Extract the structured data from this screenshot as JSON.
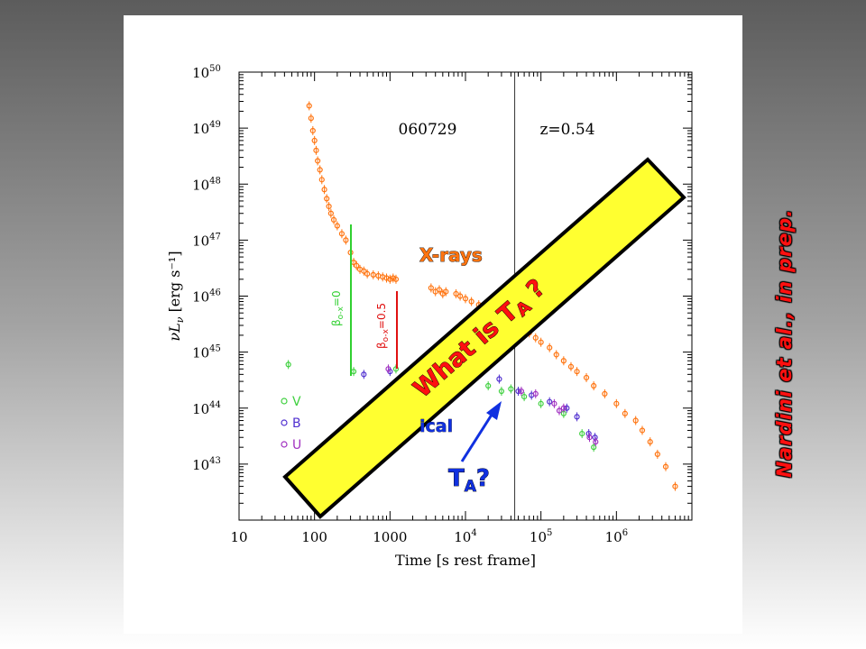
{
  "chart_data": {
    "type": "scatter",
    "xlabel": "Time [s rest frame]",
    "ylabel": "νL",
    "ylabel_sub": "ν",
    "ylabel_units": "[erg s⁻¹]",
    "xscale": "log",
    "yscale": "log",
    "xlim": [
      10,
      10000000
    ],
    "ylim": [
      1e+42,
      1e+50
    ],
    "x_ticks": [
      {
        "value": 10,
        "base": "10",
        "exp": ""
      },
      {
        "value": 100,
        "base": "100",
        "exp": ""
      },
      {
        "value": 1000,
        "base": "1000",
        "exp": ""
      },
      {
        "value": 10000,
        "base": "10",
        "exp": "4"
      },
      {
        "value": 100000,
        "base": "10",
        "exp": "5"
      },
      {
        "value": 1000000,
        "base": "10",
        "exp": "6"
      }
    ],
    "y_ticks": [
      {
        "value": 1e+43,
        "base": "10",
        "exp": "43"
      },
      {
        "value": 1e+44,
        "base": "10",
        "exp": "44"
      },
      {
        "value": 1e+45,
        "base": "10",
        "exp": "45"
      },
      {
        "value": 1e+46,
        "base": "10",
        "exp": "46"
      },
      {
        "value": 1e+47,
        "base": "10",
        "exp": "47"
      },
      {
        "value": 1e+48,
        "base": "10",
        "exp": "48"
      },
      {
        "value": 1e+49,
        "base": "10",
        "exp": "49"
      },
      {
        "value": 1e+50,
        "base": "10",
        "exp": "50"
      }
    ],
    "grb_name": "060729",
    "redshift_label": "z=0.54",
    "vertical_line_x": 45000,
    "series": [
      {
        "name": "X-rays",
        "color": "#ff7410",
        "points": [
          [
            85,
            2.5e+49
          ],
          [
            90,
            1.5e+49
          ],
          [
            95,
            9e+48
          ],
          [
            100,
            6e+48
          ],
          [
            105,
            4e+48
          ],
          [
            110,
            2.6e+48
          ],
          [
            118,
            1.8e+48
          ],
          [
            125,
            1.2e+48
          ],
          [
            135,
            8e+47
          ],
          [
            145,
            5.5e+47
          ],
          [
            155,
            4e+47
          ],
          [
            165,
            3e+47
          ],
          [
            180,
            2.3e+47
          ],
          [
            200,
            1.8e+47
          ],
          [
            230,
            1.3e+47
          ],
          [
            260,
            1e+47
          ],
          [
            300,
            6e+46
          ],
          [
            330,
            4e+46
          ],
          [
            360,
            3.5e+46
          ],
          [
            400,
            3e+46
          ],
          [
            450,
            2.8e+46
          ],
          [
            500,
            2.5e+46
          ],
          [
            600,
            2.4e+46
          ],
          [
            700,
            2.3e+46
          ],
          [
            800,
            2.2e+46
          ],
          [
            900,
            2.1e+46
          ],
          [
            1000,
            2e+46
          ],
          [
            1100,
            2.1e+46
          ],
          [
            1200,
            2e+46
          ],
          [
            3500,
            1.4e+46
          ],
          [
            4000,
            1.2e+46
          ],
          [
            4500,
            1.3e+46
          ],
          [
            5000,
            1.1e+46
          ],
          [
            5500,
            1.2e+46
          ],
          [
            7500,
            1.1e+46
          ],
          [
            8500,
            1e+46
          ],
          [
            10000,
            9e+45
          ],
          [
            12000,
            8e+45
          ],
          [
            15000,
            7e+45
          ],
          [
            18000,
            6.5e+45
          ],
          [
            22000,
            6e+45
          ],
          [
            26000,
            5e+45
          ],
          [
            30000,
            4.5e+45
          ],
          [
            36000,
            4e+45
          ],
          [
            42000,
            3.5e+45
          ],
          [
            50000,
            3e+45
          ],
          [
            60000,
            2.6e+45
          ],
          [
            70000,
            2.2e+45
          ],
          [
            85000,
            1.8e+45
          ],
          [
            100000,
            1.5e+45
          ],
          [
            130000,
            1.2e+45
          ],
          [
            160000,
            9e+44
          ],
          [
            200000,
            7e+44
          ],
          [
            250000,
            5.5e+44
          ],
          [
            300000,
            4.5e+44
          ],
          [
            400000,
            3.5e+44
          ],
          [
            500000,
            2.5e+44
          ],
          [
            700000,
            1.8e+44
          ],
          [
            1000000,
            1.2e+44
          ],
          [
            1300000,
            8e+43
          ],
          [
            1800000,
            6e+43
          ],
          [
            2200000,
            4e+43
          ],
          [
            2800000,
            2.5e+43
          ],
          [
            3500000,
            1.5e+43
          ],
          [
            4500000,
            9e+42
          ],
          [
            6000000,
            4e+42
          ]
        ]
      },
      {
        "name": "V",
        "color": "#40d040",
        "points": [
          [
            45,
            6e+44
          ],
          [
            330,
            4.5e+44
          ],
          [
            1200,
            5e+44
          ],
          [
            8000,
            2.5e+44
          ],
          [
            20000,
            2.5e+44
          ],
          [
            30000,
            2e+44
          ],
          [
            40000,
            2.2e+44
          ],
          [
            60000,
            1.6e+44
          ],
          [
            100000,
            1.2e+44
          ],
          [
            200000,
            8e+43
          ],
          [
            350000,
            3.5e+43
          ],
          [
            500000,
            2e+43
          ]
        ]
      },
      {
        "name": "B",
        "color": "#5030d0",
        "points": [
          [
            450,
            4e+44
          ],
          [
            1000,
            4.5e+44
          ],
          [
            28000,
            3.3e+44
          ],
          [
            50000,
            2e+44
          ],
          [
            75000,
            1.7e+44
          ],
          [
            130000,
            1.3e+44
          ],
          [
            220000,
            1e+44
          ],
          [
            300000,
            7e+43
          ],
          [
            430000,
            3.5e+43
          ],
          [
            520000,
            3e+43
          ]
        ]
      },
      {
        "name": "U",
        "color": "#a030c0",
        "points": [
          [
            950,
            5e+44
          ],
          [
            55000,
            2e+44
          ],
          [
            85000,
            1.8e+44
          ],
          [
            150000,
            1.2e+44
          ],
          [
            175000,
            9e+43
          ],
          [
            200000,
            1e+44
          ],
          [
            440000,
            3e+43
          ],
          [
            530000,
            2.5e+43
          ]
        ]
      }
    ],
    "legend": {
      "position": "bottom-left",
      "items": [
        {
          "label": "V",
          "color": "#40d040"
        },
        {
          "label": "B",
          "color": "#5030d0"
        },
        {
          "label": "U",
          "color": "#a030c0"
        }
      ]
    },
    "annotations": {
      "xrays_label": "X-rays",
      "optical_label": "ical",
      "beta_green": "β",
      "beta_green_sub": "o-x",
      "beta_green_val": "=0",
      "beta_red": "β",
      "beta_red_sub": "o-x",
      "beta_red_val": "=0.5",
      "banner_text": "What is T",
      "banner_sub": "A",
      "banner_end": " ?",
      "ta_label": "T",
      "ta_sub": "A",
      "ta_end": "?"
    }
  },
  "credit": "Nardini et al., in prep.",
  "colors": {
    "xray": "#ff7410",
    "banner_fill": "#ffff30",
    "banner_text": "#ff1010",
    "arrow": "#1030e0",
    "optical_text": "#1030e0",
    "green_line": "#30d030",
    "red_line": "#e01010"
  }
}
